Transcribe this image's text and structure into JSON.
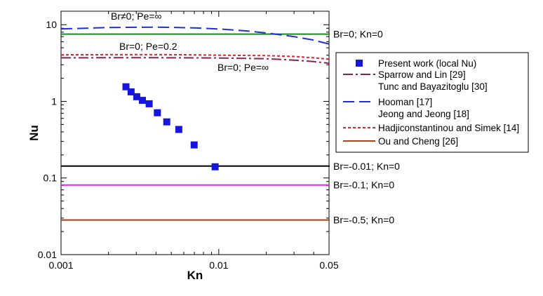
{
  "chart_data": {
    "type": "scatter",
    "xlabel": "Kn",
    "ylabel": "Nu",
    "x_scale": "log",
    "y_scale": "log",
    "xlim": [
      0.001,
      0.05
    ],
    "ylim": [
      0.01,
      15
    ],
    "x_tick_labels": [
      "0.001",
      "0.01",
      "0.05"
    ],
    "y_tick_labels": [
      "0.01",
      "0.1",
      "1",
      "10"
    ],
    "grid": false,
    "legend_position": "right",
    "colors": {
      "present": "#1515e0",
      "sparrow": "#8b2252",
      "hooman": "#1f2fd8",
      "hadji": "#e0242a",
      "ou": "#b5401c",
      "green": "#1a8a1a",
      "black": "#000000",
      "magenta": "#ee22ee",
      "brown": "#b03a10"
    },
    "series": [
      {
        "name": "Present work (local  Nu)",
        "kind": "markers",
        "points": [
          [
            0.00258,
            1.55
          ],
          [
            0.00278,
            1.33
          ],
          [
            0.00302,
            1.15
          ],
          [
            0.00328,
            1.03
          ],
          [
            0.00362,
            0.93
          ],
          [
            0.00408,
            0.71
          ],
          [
            0.00468,
            0.54
          ],
          [
            0.00558,
            0.43
          ],
          [
            0.00698,
            0.27
          ],
          [
            0.00948,
            0.14
          ]
        ]
      },
      {
        "name": "Sparrow and Lin [29] / Tunc and Bayazitoglu [30]",
        "kind": "dashdot",
        "points": [
          [
            0.001,
            3.7
          ],
          [
            0.003,
            3.72
          ],
          [
            0.006,
            3.7
          ],
          [
            0.01,
            3.68
          ],
          [
            0.02,
            3.6
          ],
          [
            0.03,
            3.45
          ],
          [
            0.04,
            3.3
          ],
          [
            0.05,
            3.15
          ]
        ]
      },
      {
        "name": "Hooman [17] / Jeong and Jeong [18]",
        "kind": "longdash",
        "points": [
          [
            0.001,
            8.8
          ],
          [
            0.002,
            9.2
          ],
          [
            0.004,
            9.3
          ],
          [
            0.007,
            9.1
          ],
          [
            0.01,
            8.8
          ],
          [
            0.015,
            8.3
          ],
          [
            0.02,
            7.8
          ],
          [
            0.03,
            7.0
          ],
          [
            0.04,
            6.3
          ],
          [
            0.05,
            5.6
          ]
        ]
      },
      {
        "name": "Hadjiconstantinou and Simek [14]",
        "kind": "dotted",
        "points": [
          [
            0.001,
            4.05
          ],
          [
            0.003,
            4.08
          ],
          [
            0.006,
            4.06
          ],
          [
            0.01,
            4.0
          ],
          [
            0.02,
            3.95
          ],
          [
            0.03,
            3.85
          ],
          [
            0.04,
            3.7
          ],
          [
            0.05,
            3.55
          ]
        ]
      },
      {
        "name": "Ou and Cheng [26]",
        "kind": "solid",
        "points": []
      }
    ],
    "reference_lines": [
      {
        "value": 7.54,
        "color": "green",
        "label": "Br=0; Kn=0"
      },
      {
        "value": 0.143,
        "color": "black",
        "label": "Br=-0.01; Kn=0"
      },
      {
        "value": 0.081,
        "color": "magenta",
        "label": "Br=-0.1; Kn=0"
      },
      {
        "value": 0.0283,
        "color": "brown",
        "label": "Br=-0.5; Kn=0"
      }
    ],
    "annotations": {
      "br_ne0": "Br≠0; Pe=∞",
      "br0_pe02": "Br=0; Pe=0.2",
      "br0_peinf": "Br=0; Pe=∞"
    },
    "legend": [
      {
        "label": "Present work (local  Nu)",
        "series": 0
      },
      {
        "label": "Sparrow and Lin [29]",
        "series": 1
      },
      {
        "label": "Tunc and Bayazitoglu [30]",
        "series": 1,
        "continuation": true
      },
      {
        "label": "Hooman [17]",
        "series": 2
      },
      {
        "label": "Jeong and Jeong [18]",
        "series": 2,
        "continuation": true
      },
      {
        "label": "Hadjiconstantinou and Simek [14]",
        "series": 3
      },
      {
        "label": "Ou and Cheng [26]",
        "series": 4
      }
    ]
  }
}
